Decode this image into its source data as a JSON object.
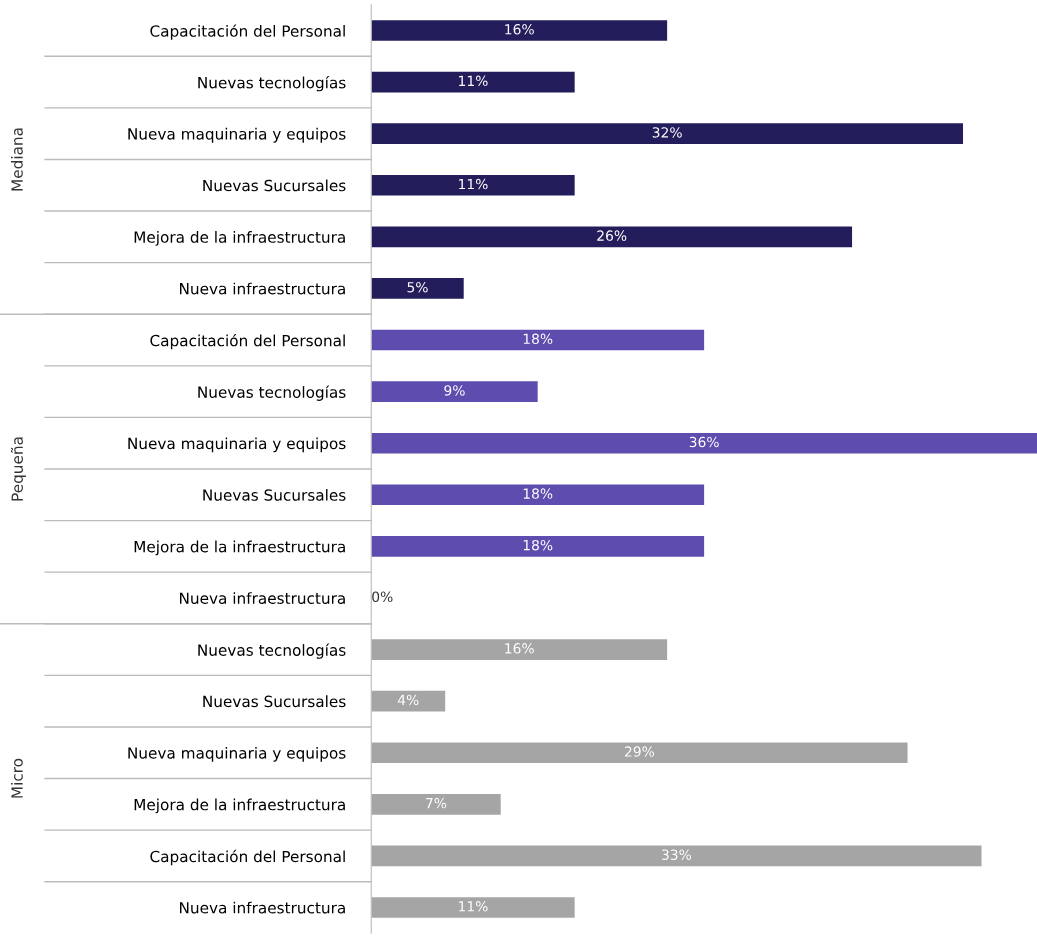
{
  "chart_data": {
    "type": "bar",
    "orientation": "horizontal",
    "xlim": [
      0,
      36
    ],
    "categories": [
      "Capacitación del Personal",
      "Nuevas tecnologías",
      "Nueva maquinaria y equipos",
      "Nuevas Sucursales",
      "Mejora de la infraestructura",
      "Nueva infraestructura",
      "Capacitación del Personal",
      "Nuevas tecnologías",
      "Nueva maquinaria y equipos",
      "Nuevas Sucursales",
      "Mejora de la infraestructura",
      "Nueva infraestructura",
      "Nuevas tecnologías",
      "Nuevas Sucursales",
      "Nueva maquinaria y equipos",
      "Mejora de la infraestructura",
      "Capacitación del Personal",
      "Nueva infraestructura"
    ],
    "annotations": [
      "Mediana",
      "Pequeña",
      "Micro"
    ],
    "series": [
      {
        "color": "#241d5c",
        "values": [
          16,
          11,
          32,
          11,
          26,
          5,
          null,
          null,
          null,
          null,
          null,
          null,
          null,
          null,
          null,
          null,
          null,
          null
        ],
        "value_labels": [
          "16%",
          "11%",
          "32%",
          "11%",
          "26%",
          "5%",
          null,
          null,
          null,
          null,
          null,
          null,
          null,
          null,
          null,
          null,
          null,
          null
        ]
      },
      {
        "color": "#5e4cae",
        "values": [
          null,
          null,
          null,
          null,
          null,
          null,
          18,
          9,
          36,
          18,
          18,
          0,
          null,
          null,
          null,
          null,
          null,
          null
        ],
        "value_labels": [
          null,
          null,
          null,
          null,
          null,
          null,
          "18%",
          "9%",
          "36%",
          "18%",
          "18%",
          "0%",
          null,
          null,
          null,
          null,
          null,
          null
        ]
      },
      {
        "color": "#a5a5a5",
        "values": [
          null,
          null,
          null,
          null,
          null,
          null,
          null,
          null,
          null,
          null,
          null,
          null,
          16,
          4,
          29,
          7,
          33,
          11
        ],
        "value_labels": [
          null,
          null,
          null,
          null,
          null,
          null,
          null,
          null,
          null,
          null,
          null,
          null,
          "16%",
          "4%",
          "29%",
          "7%",
          "33%",
          "11%"
        ]
      }
    ]
  }
}
